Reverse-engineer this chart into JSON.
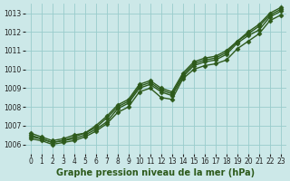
{
  "xlabel": "Graphe pression niveau de la mer (hPa)",
  "xlim": [
    -0.5,
    23.5
  ],
  "ylim": [
    1005.5,
    1013.5
  ],
  "yticks": [
    1006,
    1007,
    1008,
    1009,
    1010,
    1011,
    1012,
    1013
  ],
  "xticks": [
    0,
    1,
    2,
    3,
    4,
    5,
    6,
    7,
    8,
    9,
    10,
    11,
    12,
    13,
    14,
    15,
    16,
    17,
    18,
    19,
    20,
    21,
    22,
    23
  ],
  "bg_color": "#cce8e8",
  "grid_color": "#99cccc",
  "line_color": "#2d5a1b",
  "series": [
    [
      1006.4,
      1006.3,
      1006.1,
      1006.2,
      1006.3,
      1006.5,
      1006.8,
      1007.2,
      1007.9,
      1008.2,
      1009.0,
      1009.2,
      1008.8,
      1008.6,
      1009.6,
      1010.2,
      1010.4,
      1010.5,
      1010.8,
      1011.4,
      1011.8,
      1012.1,
      1012.8,
      1013.1
    ],
    [
      1006.3,
      1006.2,
      1006.0,
      1006.1,
      1006.2,
      1006.4,
      1006.7,
      1007.1,
      1007.7,
      1008.0,
      1008.8,
      1009.0,
      1008.5,
      1008.4,
      1009.5,
      1010.0,
      1010.2,
      1010.3,
      1010.5,
      1011.1,
      1011.5,
      1011.9,
      1012.6,
      1012.9
    ],
    [
      1006.6,
      1006.4,
      1006.2,
      1006.3,
      1006.5,
      1006.6,
      1007.0,
      1007.5,
      1008.1,
      1008.4,
      1009.2,
      1009.4,
      1009.0,
      1008.8,
      1009.8,
      1010.4,
      1010.6,
      1010.7,
      1011.0,
      1011.5,
      1012.0,
      1012.4,
      1013.0,
      1013.3
    ],
    [
      1006.5,
      1006.3,
      1006.1,
      1006.2,
      1006.4,
      1006.6,
      1006.9,
      1007.4,
      1008.0,
      1008.3,
      1009.1,
      1009.3,
      1008.9,
      1008.7,
      1009.7,
      1010.3,
      1010.5,
      1010.6,
      1010.9,
      1011.5,
      1011.9,
      1012.3,
      1012.9,
      1013.2
    ]
  ],
  "marker": "D",
  "markersize": 2.5,
  "linewidth": 1.0,
  "tick_fontsize": 5.5,
  "xlabel_fontsize": 7.0
}
